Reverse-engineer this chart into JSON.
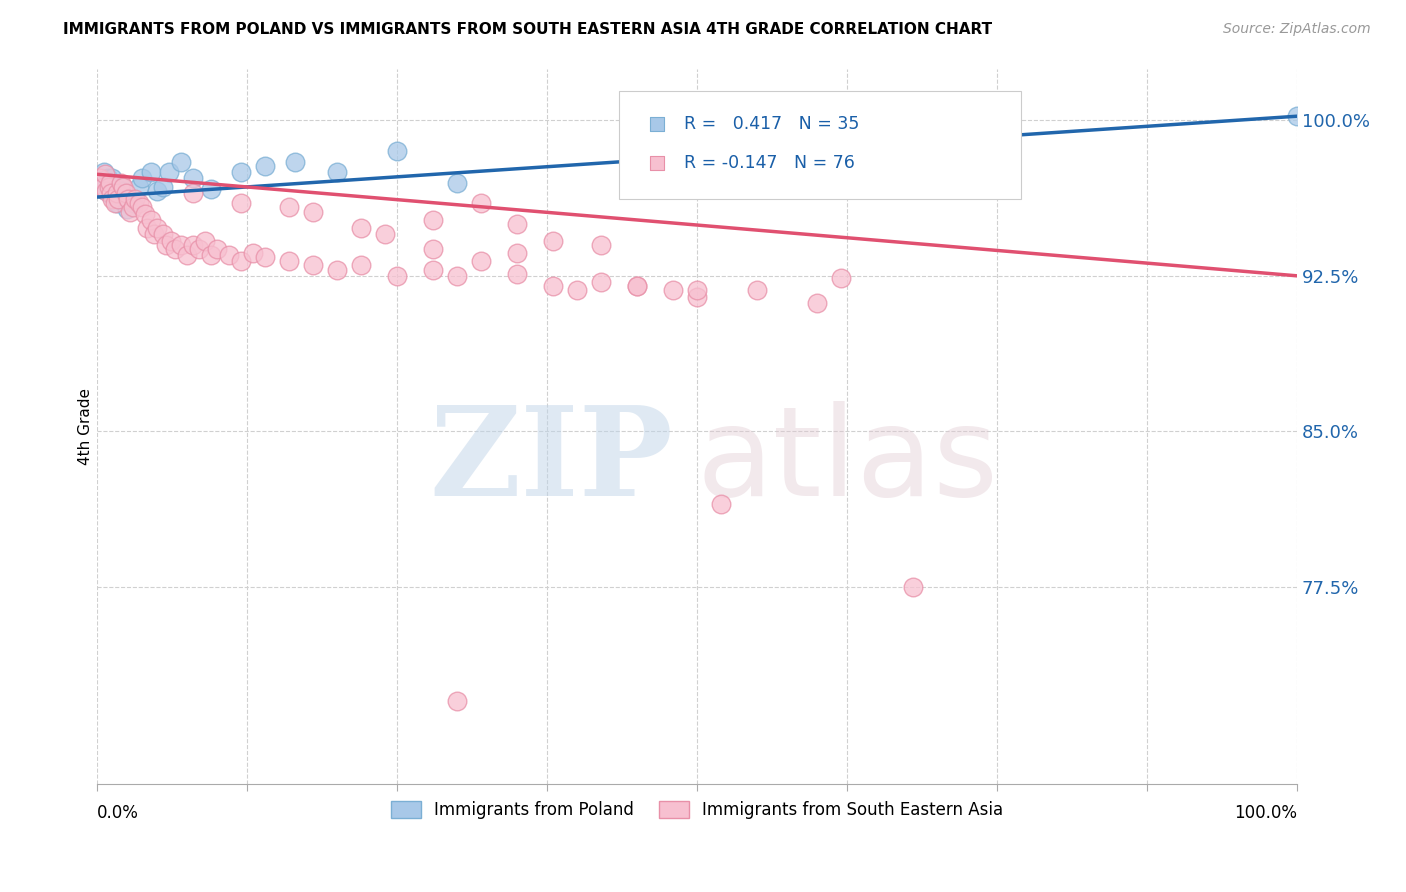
{
  "title": "IMMIGRANTS FROM POLAND VS IMMIGRANTS FROM SOUTH EASTERN ASIA 4TH GRADE CORRELATION CHART",
  "source": "Source: ZipAtlas.com",
  "ylabel": "4th Grade",
  "ytick_labels": [
    "100.0%",
    "92.5%",
    "85.0%",
    "77.5%"
  ],
  "ytick_values": [
    100.0,
    92.5,
    85.0,
    77.5
  ],
  "xlim": [
    0.0,
    100.0
  ],
  "ylim": [
    68.0,
    102.5
  ],
  "poland_R": 0.417,
  "poland_N": 35,
  "sea_R": -0.147,
  "sea_N": 76,
  "poland_color": "#a8c8e8",
  "poland_edge_color": "#7bafd4",
  "poland_line_color": "#2166ac",
  "sea_color": "#f7c0d0",
  "sea_edge_color": "#e890a8",
  "sea_line_color": "#e05070",
  "legend_label_poland": "Immigrants from Poland",
  "legend_label_sea": "Immigrants from South Eastern Asia",
  "poland_line_x": [
    0.0,
    100.0
  ],
  "poland_line_y": [
    96.3,
    100.2
  ],
  "sea_line_x": [
    0.0,
    100.0
  ],
  "sea_line_y": [
    97.4,
    92.5
  ],
  "poland_x": [
    0.4,
    0.6,
    0.8,
    0.9,
    1.0,
    1.1,
    1.2,
    1.3,
    1.4,
    1.6,
    1.7,
    1.9,
    2.0,
    2.2,
    2.5,
    2.8,
    3.0,
    3.5,
    3.8,
    4.5,
    5.0,
    5.5,
    6.0,
    7.0,
    8.0,
    9.5,
    12.0,
    14.0,
    16.5,
    20.0,
    25.0,
    30.0,
    55.0,
    72.0,
    100.0
  ],
  "poland_y": [
    96.7,
    97.5,
    96.8,
    97.2,
    96.5,
    97.0,
    96.8,
    97.2,
    96.6,
    96.8,
    96.0,
    96.3,
    96.8,
    96.6,
    95.7,
    96.2,
    96.0,
    96.8,
    97.2,
    97.5,
    96.6,
    96.8,
    97.5,
    98.0,
    97.2,
    96.7,
    97.5,
    97.8,
    98.0,
    97.5,
    98.5,
    97.0,
    99.0,
    99.5,
    100.2
  ],
  "sea_x": [
    0.3,
    0.5,
    0.7,
    0.8,
    1.0,
    1.1,
    1.2,
    1.3,
    1.5,
    1.7,
    1.8,
    2.0,
    2.2,
    2.4,
    2.6,
    2.8,
    3.0,
    3.2,
    3.5,
    3.8,
    4.0,
    4.2,
    4.5,
    4.8,
    5.0,
    5.5,
    5.8,
    6.2,
    6.5,
    7.0,
    7.5,
    8.0,
    8.5,
    9.0,
    9.5,
    10.0,
    11.0,
    12.0,
    13.0,
    14.0,
    16.0,
    18.0,
    20.0,
    22.0,
    25.0,
    28.0,
    30.0,
    32.0,
    35.0,
    38.0,
    40.0,
    42.0,
    45.0,
    48.0,
    50.0,
    55.0,
    35.0,
    12.0,
    18.0,
    28.0,
    32.0,
    22.0,
    38.0,
    42.0,
    28.0,
    35.0,
    8.0,
    16.0,
    24.0,
    45.0,
    50.0,
    60.0,
    62.0,
    68.0,
    52.0,
    30.0
  ],
  "sea_y": [
    97.2,
    96.8,
    97.4,
    96.6,
    96.8,
    97.0,
    96.5,
    96.2,
    96.0,
    96.5,
    96.2,
    97.0,
    96.8,
    96.5,
    96.2,
    95.6,
    95.8,
    96.2,
    96.0,
    95.8,
    95.5,
    94.8,
    95.2,
    94.5,
    94.8,
    94.5,
    94.0,
    94.2,
    93.8,
    94.0,
    93.5,
    94.0,
    93.8,
    94.2,
    93.5,
    93.8,
    93.5,
    93.2,
    93.6,
    93.4,
    93.2,
    93.0,
    92.8,
    93.0,
    92.5,
    92.8,
    92.5,
    93.2,
    92.6,
    92.0,
    91.8,
    92.2,
    92.0,
    91.8,
    91.5,
    91.8,
    95.0,
    96.0,
    95.6,
    95.2,
    96.0,
    94.8,
    94.2,
    94.0,
    93.8,
    93.6,
    96.5,
    95.8,
    94.5,
    92.0,
    91.8,
    91.2,
    92.4,
    77.5,
    81.5,
    72.0
  ]
}
